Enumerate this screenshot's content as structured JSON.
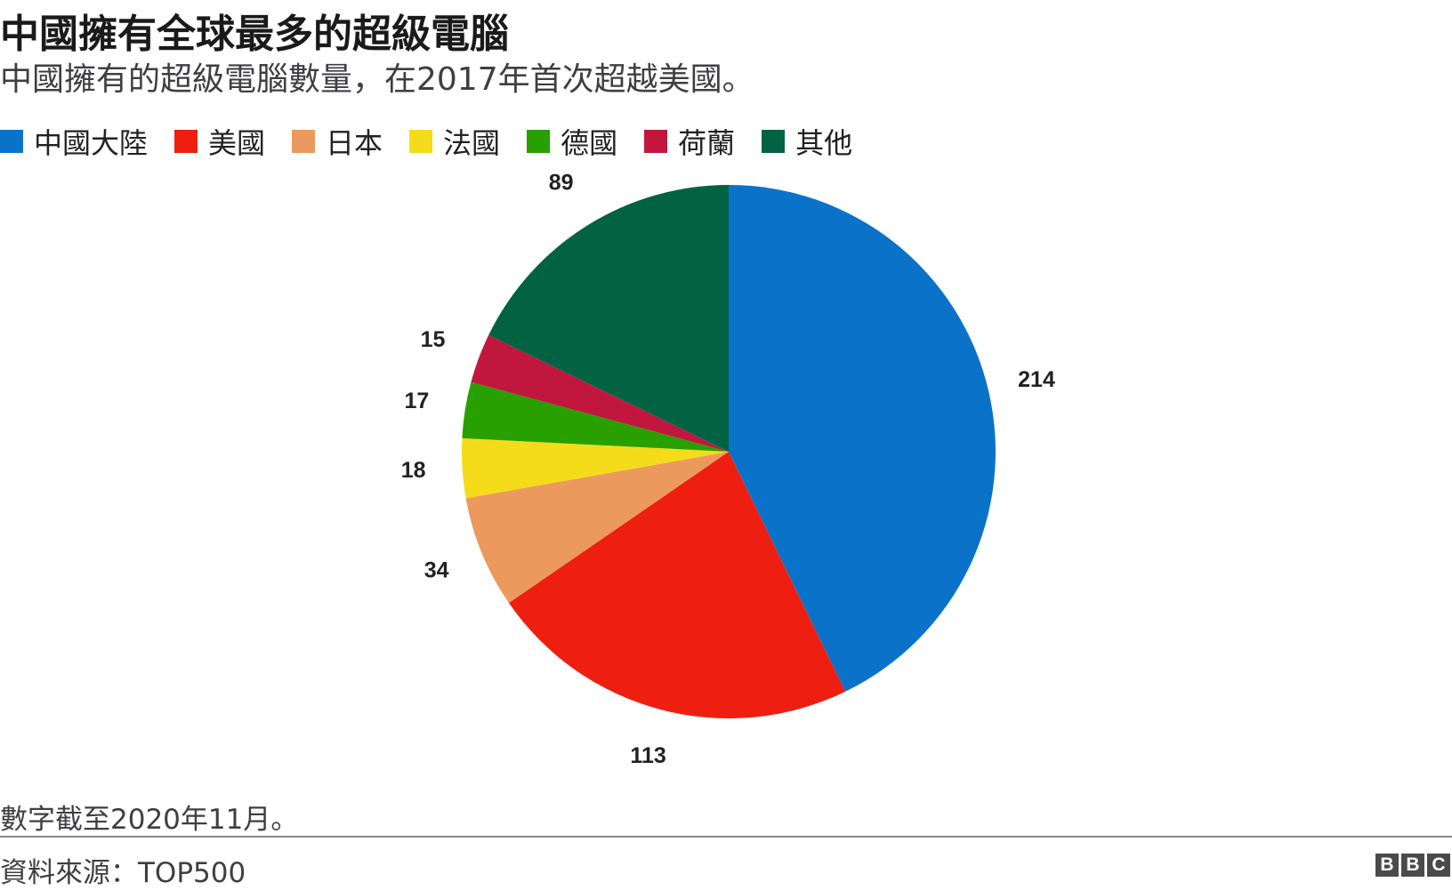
{
  "title": "中國擁有全球最多的超級電腦",
  "subtitle": "中國擁有的超級電腦數量，在2017年首次超越美國。",
  "note": "數字截至2020年11月。",
  "source": "資料來源：TOP500",
  "logo": [
    "B",
    "B",
    "C"
  ],
  "chart_data": {
    "type": "pie",
    "title": "中國擁有全球最多的超級電腦",
    "legend_position": "top-left",
    "start": "12 o'clock, clockwise",
    "slices": [
      {
        "name": "中國大陸",
        "value": 214,
        "color": "#0a73c9"
      },
      {
        "name": "美國",
        "value": 113,
        "color": "#ee1f10"
      },
      {
        "name": "日本",
        "value": 34,
        "color": "#ec995e"
      },
      {
        "name": "法國",
        "value": 18,
        "color": "#f5dc1a"
      },
      {
        "name": "德國",
        "value": 17,
        "color": "#27a000"
      },
      {
        "name": "荷蘭",
        "value": 15,
        "color": "#c1173f"
      },
      {
        "name": "其他",
        "value": 89,
        "color": "#026343"
      }
    ]
  }
}
